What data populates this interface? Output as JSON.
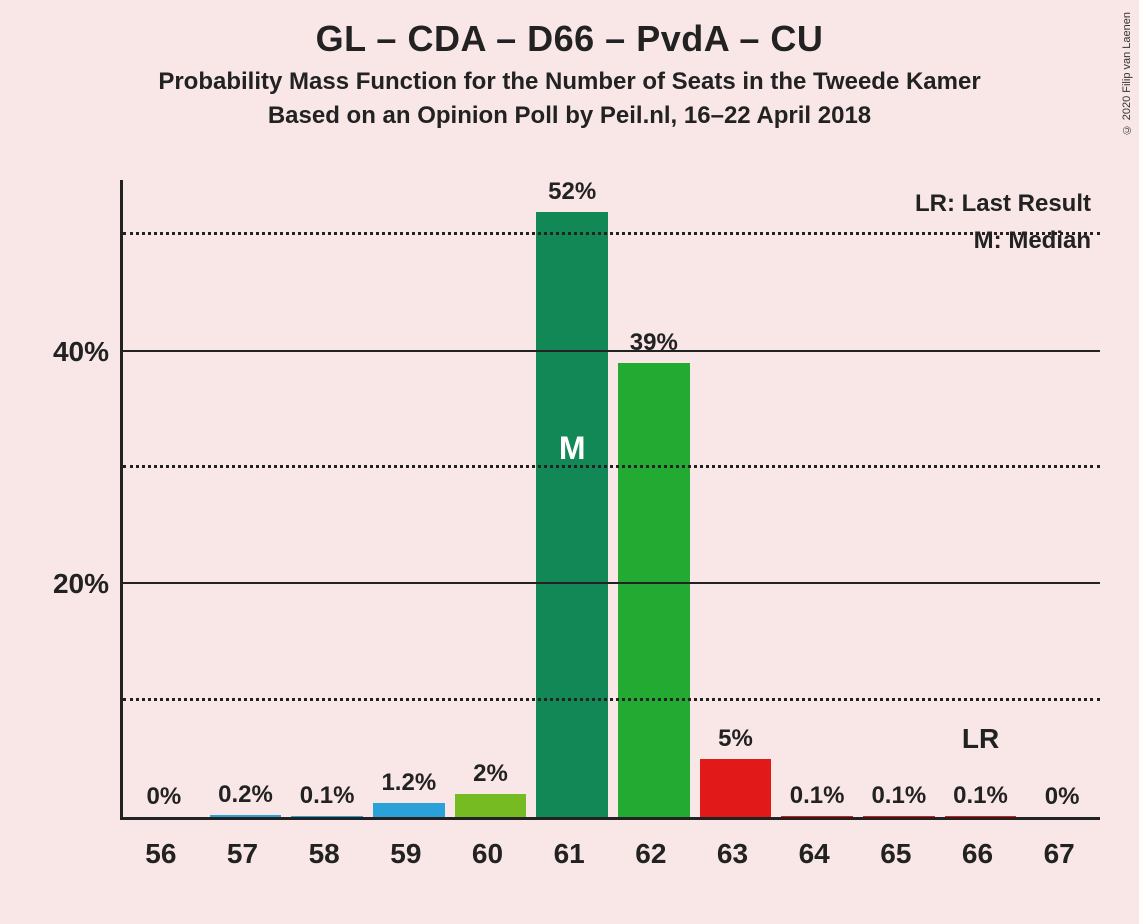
{
  "title": "GL – CDA – D66 – PvdA – CU",
  "subtitle1": "Probability Mass Function for the Number of Seats in the Tweede Kamer",
  "subtitle2": "Based on an Opinion Poll by Peil.nl, 16–22 April 2018",
  "legend": {
    "lr": "LR: Last Result",
    "m": "M: Median"
  },
  "copyright": "© 2020 Filip van Laenen",
  "chart": {
    "type": "bar",
    "background_color": "#f9e7e7",
    "axis_color": "#222222",
    "ylim_max": 55,
    "y_major_ticks": [
      20,
      40
    ],
    "y_minor_ticks": [
      10,
      30,
      50
    ],
    "y_labels": {
      "20": "20%",
      "40": "40%"
    },
    "x_categories": [
      "56",
      "57",
      "58",
      "59",
      "60",
      "61",
      "62",
      "63",
      "64",
      "65",
      "66",
      "67"
    ],
    "bar_width_ratio": 0.88,
    "lr_index": 10,
    "lr_label": "LR",
    "m_label": "M",
    "bars": [
      {
        "x": "56",
        "value": 0,
        "label": "0%",
        "color": "#2aa1d9",
        "median": false
      },
      {
        "x": "57",
        "value": 0.2,
        "label": "0.2%",
        "color": "#2aa1d9",
        "median": false
      },
      {
        "x": "58",
        "value": 0.1,
        "label": "0.1%",
        "color": "#2aa1d9",
        "median": false
      },
      {
        "x": "59",
        "value": 1.2,
        "label": "1.2%",
        "color": "#2aa1d9",
        "median": false
      },
      {
        "x": "60",
        "value": 2,
        "label": "2%",
        "color": "#77bb22",
        "median": false
      },
      {
        "x": "61",
        "value": 52,
        "label": "52%",
        "color": "#118855",
        "median": true
      },
      {
        "x": "62",
        "value": 39,
        "label": "39%",
        "color": "#22aa33",
        "median": false
      },
      {
        "x": "63",
        "value": 5,
        "label": "5%",
        "color": "#e11919",
        "median": false
      },
      {
        "x": "64",
        "value": 0.1,
        "label": "0.1%",
        "color": "#e11919",
        "median": false
      },
      {
        "x": "65",
        "value": 0.1,
        "label": "0.1%",
        "color": "#e11919",
        "median": false
      },
      {
        "x": "66",
        "value": 0.1,
        "label": "0.1%",
        "color": "#e11919",
        "median": false
      },
      {
        "x": "67",
        "value": 0,
        "label": "0%",
        "color": "#e11919",
        "median": false
      }
    ]
  }
}
